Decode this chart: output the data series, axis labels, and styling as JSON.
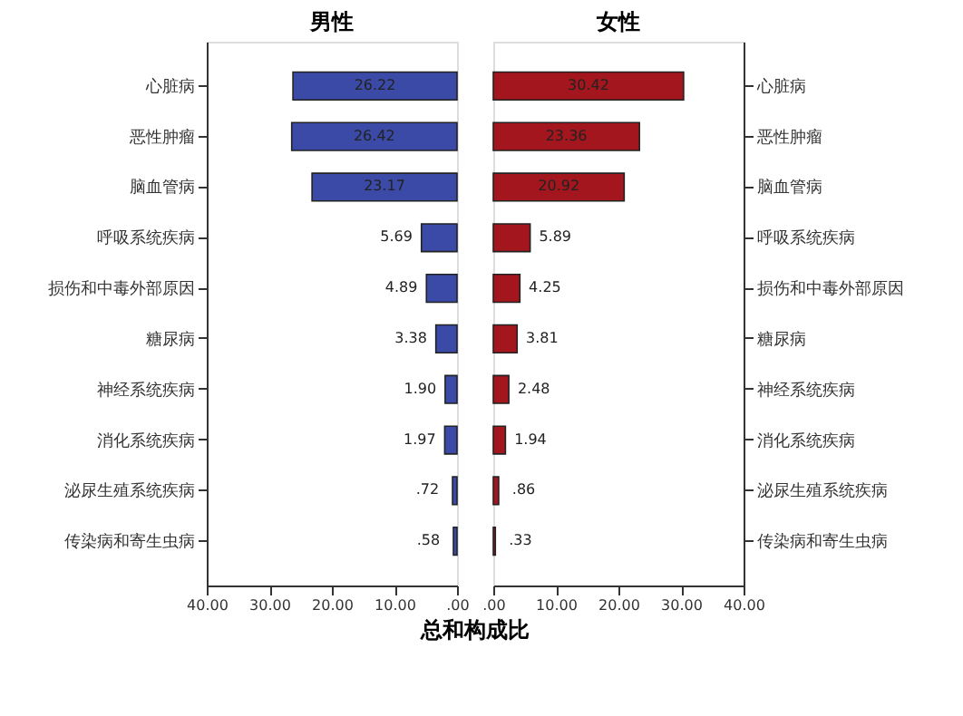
{
  "chart_data": [
    {
      "type": "bar",
      "orientation": "horizontal",
      "title": "男性",
      "xlabel": "总和构成比",
      "categories": [
        "心脏病",
        "恶性肿瘤",
        "脑血管病",
        "呼吸系统疾病",
        "损伤和中毒外部原因",
        "糖尿病",
        "神经系统疾病",
        "消化系统疾病",
        "泌尿生殖系统疾病",
        "传染病和寄生虫病"
      ],
      "values": [
        26.22,
        26.42,
        23.17,
        5.69,
        4.89,
        3.38,
        1.9,
        1.97,
        0.72,
        0.58
      ],
      "value_labels": [
        "26.22",
        "26.42",
        "23.17",
        "5.69",
        "4.89",
        "3.38",
        "1.90",
        "1.97",
        ".72",
        ".58"
      ],
      "color": "#3b4aa6",
      "xlim": [
        40,
        0
      ],
      "xticks": [
        {
          "value": 40,
          "label": "40.00"
        },
        {
          "value": 30,
          "label": "30.00"
        },
        {
          "value": 20,
          "label": "20.00"
        },
        {
          "value": 10,
          "label": "10.00"
        },
        {
          "value": 0,
          "label": ".00"
        }
      ]
    },
    {
      "type": "bar",
      "orientation": "horizontal",
      "title": "女性",
      "categories": [
        "心脏病",
        "恶性肿瘤",
        "脑血管病",
        "呼吸系统疾病",
        "损伤和中毒外部原因",
        "糖尿病",
        "神经系统疾病",
        "消化系统疾病",
        "泌尿生殖系统疾病",
        "传染病和寄生虫病"
      ],
      "values": [
        30.42,
        23.36,
        20.92,
        5.89,
        4.25,
        3.81,
        2.48,
        1.94,
        0.86,
        0.33
      ],
      "value_labels": [
        "30.42",
        "23.36",
        "20.92",
        "5.89",
        "4.25",
        "3.81",
        "2.48",
        "1.94",
        ".86",
        ".33"
      ],
      "color": "#a3161d",
      "xlim": [
        0,
        40
      ],
      "xticks": [
        {
          "value": 0,
          "label": ".00"
        },
        {
          "value": 10,
          "label": "10.00"
        },
        {
          "value": 20,
          "label": "20.00"
        },
        {
          "value": 30,
          "label": "30.00"
        },
        {
          "value": 40,
          "label": "40.00"
        }
      ]
    }
  ]
}
